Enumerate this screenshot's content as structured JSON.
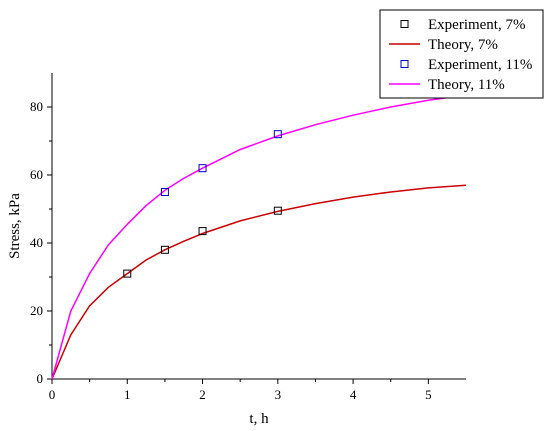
{
  "chart_data": {
    "type": "line",
    "title": "",
    "xlabel": "t, h",
    "ylabel": "Stress, kPa",
    "xlim": [
      0,
      5.5
    ],
    "ylim": [
      0,
      90
    ],
    "xticks": [
      0,
      1,
      2,
      3,
      4,
      5
    ],
    "yticks": [
      0,
      20,
      40,
      60,
      80
    ],
    "x_tick_labels": [
      "0",
      "1",
      "2",
      "3",
      "4",
      "5"
    ],
    "y_tick_labels": [
      "0",
      "20",
      "40",
      "60",
      "80"
    ],
    "grid": false,
    "legend_position": "top-right",
    "series": [
      {
        "name": "Experiment, 7%",
        "kind": "scatter",
        "marker": "open-square",
        "color": "#000000",
        "x": [
          1,
          1.5,
          2,
          3
        ],
        "y": [
          31,
          38,
          43.5,
          49.5
        ]
      },
      {
        "name": "Theory, 7%",
        "kind": "line",
        "color": "#cc0000",
        "x": [
          0,
          0.25,
          0.5,
          0.75,
          1,
          1.25,
          1.5,
          1.75,
          2,
          2.5,
          3,
          3.5,
          4,
          4.5,
          5,
          5.5
        ],
        "y": [
          0,
          13,
          21.5,
          27,
          31,
          35,
          38,
          40.5,
          42.8,
          46.5,
          49.3,
          51.6,
          53.5,
          55,
          56.2,
          57
        ]
      },
      {
        "name": "Experiment, 11%",
        "kind": "scatter",
        "marker": "open-square",
        "color": "#0000cc",
        "x": [
          1.5,
          2,
          3
        ],
        "y": [
          55,
          62,
          72
        ]
      },
      {
        "name": "Theory, 11%",
        "kind": "line",
        "color": "#ff00ff",
        "x": [
          0,
          0.25,
          0.5,
          0.75,
          1,
          1.25,
          1.5,
          1.75,
          2,
          2.5,
          3,
          3.5,
          4,
          4.5,
          5,
          5.5
        ],
        "y": [
          0,
          20,
          31,
          39.5,
          45.5,
          51,
          55.5,
          59,
          62,
          67.5,
          71.5,
          74.8,
          77.6,
          80,
          82,
          83.5
        ]
      }
    ]
  }
}
